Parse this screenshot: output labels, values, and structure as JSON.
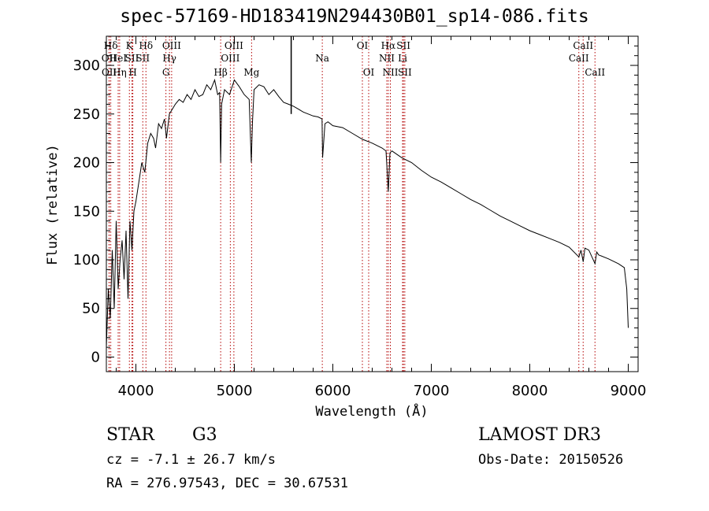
{
  "chart_data": {
    "type": "line",
    "title": "spec-57169-HD183419N294430B01_sp14-086.fits",
    "xlabel": "Wavelength (Å)",
    "ylabel": "Flux (relative)",
    "xlim": [
      3700,
      9100
    ],
    "ylim": [
      -15,
      330
    ],
    "xticks": [
      4000,
      5000,
      6000,
      7000,
      8000,
      9000
    ],
    "yticks": [
      0,
      50,
      100,
      150,
      200,
      250,
      300
    ],
    "xtick_labels": [
      "4000",
      "5000",
      "6000",
      "7000",
      "8000",
      "9000"
    ],
    "ytick_labels": [
      "0",
      "50",
      "100",
      "150",
      "200",
      "250",
      "300"
    ],
    "series": [
      {
        "name": "flux",
        "x": [
          3700,
          3720,
          3740,
          3760,
          3780,
          3800,
          3820,
          3840,
          3860,
          3880,
          3900,
          3920,
          3940,
          3960,
          3980,
          4000,
          4030,
          4060,
          4090,
          4120,
          4150,
          4180,
          4200,
          4230,
          4260,
          4290,
          4310,
          4340,
          4370,
          4400,
          4440,
          4480,
          4520,
          4560,
          4600,
          4640,
          4680,
          4720,
          4760,
          4800,
          4830,
          4850,
          4861,
          4870,
          4900,
          4950,
          5000,
          5050,
          5100,
          5150,
          5172,
          5183,
          5200,
          5250,
          5300,
          5350,
          5400,
          5450,
          5500,
          5550,
          5600,
          5650,
          5700,
          5750,
          5800,
          5850,
          5890,
          5896,
          5920,
          5950,
          6000,
          6100,
          6200,
          6300,
          6400,
          6500,
          6540,
          6563,
          6580,
          6600,
          6700,
          6800,
          6900,
          7000,
          7100,
          7200,
          7300,
          7400,
          7500,
          7600,
          7700,
          7800,
          7900,
          8000,
          8100,
          8200,
          8300,
          8400,
          8498,
          8520,
          8542,
          8560,
          8600,
          8662,
          8680,
          8700,
          8800,
          8900,
          8960,
          8985,
          9000
        ],
        "y": [
          10,
          70,
          40,
          110,
          50,
          140,
          70,
          100,
          120,
          80,
          130,
          60,
          140,
          110,
          150,
          160,
          180,
          200,
          190,
          220,
          230,
          225,
          215,
          240,
          235,
          245,
          225,
          250,
          255,
          260,
          265,
          262,
          270,
          265,
          275,
          268,
          270,
          280,
          275,
          285,
          270,
          272,
          200,
          260,
          275,
          270,
          285,
          278,
          270,
          265,
          200,
          240,
          275,
          280,
          278,
          270,
          275,
          268,
          262,
          260,
          258,
          255,
          252,
          250,
          248,
          247,
          245,
          205,
          240,
          242,
          238,
          236,
          230,
          224,
          220,
          215,
          212,
          170,
          210,
          212,
          205,
          200,
          192,
          185,
          180,
          174,
          168,
          162,
          157,
          151,
          145,
          140,
          135,
          130,
          126,
          122,
          118,
          113,
          103,
          110,
          98,
          112,
          110,
          96,
          108,
          105,
          101,
          96,
          92,
          70,
          30
        ]
      }
    ],
    "line_markers": [
      {
        "label": "Hδ",
        "x": 3745,
        "row": 1
      },
      {
        "label": "OII",
        "x": 3727,
        "row": 2
      },
      {
        "label": "OII",
        "x": 3729,
        "row": 3
      },
      {
        "label": "HeI",
        "x": 3820,
        "row": 2
      },
      {
        "label": "Hη",
        "x": 3835,
        "row": 3
      },
      {
        "label": "K",
        "x": 3934,
        "row": 1
      },
      {
        "label": "SII",
        "x": 3960,
        "row": 2
      },
      {
        "label": "H",
        "x": 3969,
        "row": 3
      },
      {
        "label": "Hδ",
        "x": 4102,
        "row": 1
      },
      {
        "label": "SII",
        "x": 4070,
        "row": 2
      },
      {
        "label": "OIII",
        "x": 4363,
        "row": 1
      },
      {
        "label": "Hγ",
        "x": 4341,
        "row": 2
      },
      {
        "label": "G",
        "x": 4305,
        "row": 3
      },
      {
        "label": "Hβ",
        "x": 4861,
        "row": 3
      },
      {
        "label": "OIII",
        "x": 4995,
        "row": 1
      },
      {
        "label": "OIII",
        "x": 4959,
        "row": 2
      },
      {
        "label": "Mg",
        "x": 5175,
        "row": 3
      },
      {
        "label": "Na",
        "x": 5893,
        "row": 2
      },
      {
        "label": "OI",
        "x": 6300,
        "row": 1
      },
      {
        "label": "OI",
        "x": 6364,
        "row": 3
      },
      {
        "label": "Hα",
        "x": 6563,
        "row": 1
      },
      {
        "label": "NII",
        "x": 6548,
        "row": 2
      },
      {
        "label": "NII",
        "x": 6584,
        "row": 3
      },
      {
        "label": "SII",
        "x": 6717,
        "row": 1
      },
      {
        "label": "Li",
        "x": 6708,
        "row": 2
      },
      {
        "label": "SII",
        "x": 6731,
        "row": 3
      },
      {
        "label": "CaII",
        "x": 8542,
        "row": 1
      },
      {
        "label": "CaII",
        "x": 8498,
        "row": 2
      },
      {
        "label": "CaII",
        "x": 8662,
        "row": 3
      }
    ],
    "spike": {
      "x": 5577,
      "y": 330
    }
  },
  "info": {
    "class_label": "STAR",
    "subclass": "G3",
    "survey": "LAMOST DR3",
    "cz": "cz = -7.1 ± 26.7 km/s",
    "obs_date": "Obs-Date: 20150526",
    "coords": "RA = 276.97543, DEC =  30.67531"
  }
}
